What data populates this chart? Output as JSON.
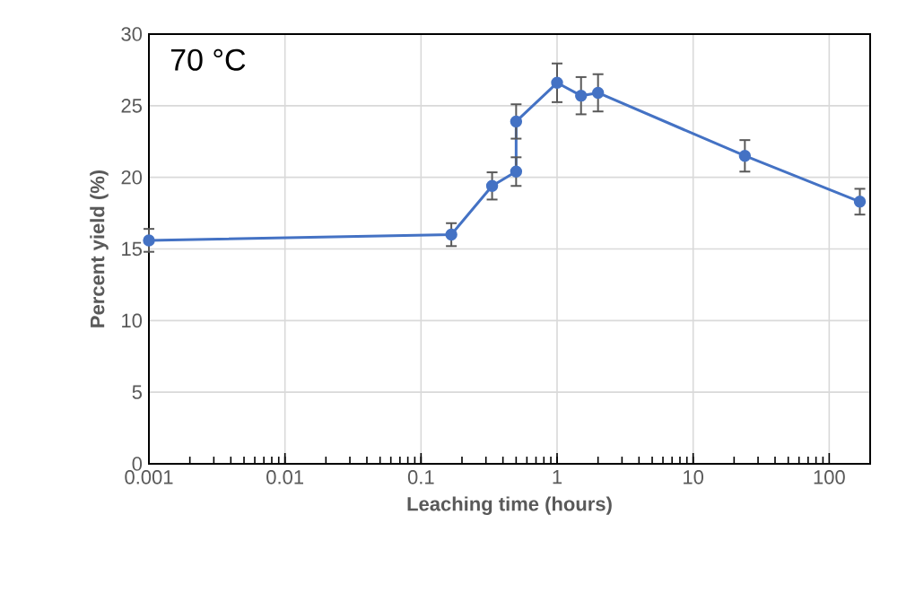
{
  "chart_data": {
    "type": "line",
    "xlabel": "Leaching time (hours)",
    "ylabel": "Percent yield (%)",
    "annotations": [
      "70 °C"
    ],
    "x": [
      0.001,
      0.167,
      0.333,
      0.5,
      0.5,
      1,
      1.5,
      2,
      24,
      168
    ],
    "series": [
      {
        "color": "#4472c4",
        "values": [
          15.6,
          16.0,
          19.4,
          20.4,
          23.9,
          26.6,
          25.7,
          25.9,
          21.5,
          18.3
        ],
        "errors": [
          0.8,
          0.8,
          0.95,
          1.0,
          1.2,
          1.35,
          1.3,
          1.3,
          1.1,
          0.9
        ]
      }
    ],
    "log": "x",
    "xlim": [
      0.001,
      200
    ],
    "ylim": [
      0,
      30
    ],
    "xticks": [
      0.001,
      0.01,
      0.1,
      1,
      10,
      100
    ],
    "yticks": [
      0,
      5,
      10,
      15,
      20,
      25,
      30
    ],
    "grid": true,
    "marker": "circle",
    "line_style": "solid"
  }
}
